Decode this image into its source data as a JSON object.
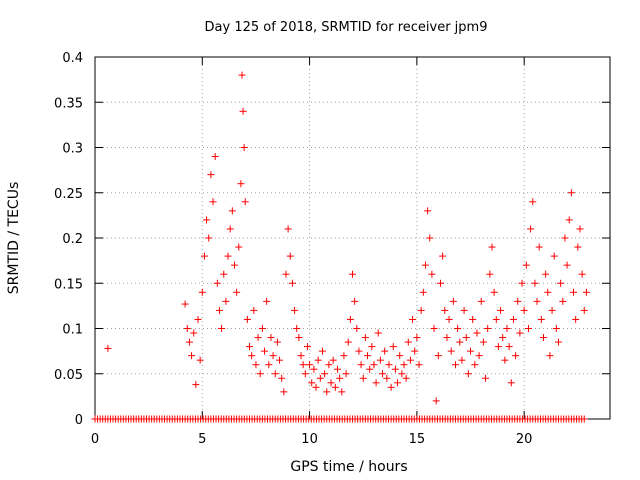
{
  "chart_data": {
    "type": "scatter",
    "title": "Day 125 of 2018, SRMTID for receiver jpm9",
    "xlabel": "GPS time / hours",
    "ylabel": "SRMTID / TECUs",
    "xlim": [
      0,
      24
    ],
    "ylim": [
      0,
      0.4
    ],
    "x_ticks": [
      0,
      5,
      10,
      15,
      20
    ],
    "y_ticks": [
      0,
      0.05,
      0.1,
      0.15,
      0.2,
      0.25,
      0.3,
      0.35,
      0.4
    ],
    "x_tick_labels": [
      "0",
      "5",
      "10",
      "15",
      "20"
    ],
    "y_tick_labels": [
      "0",
      "0.05",
      "0.1",
      "0.15",
      "0.2",
      "0.25",
      "0.3",
      "0.35",
      "0.4"
    ],
    "grid": true,
    "marker": "+",
    "color": "#ff0000",
    "series": [
      {
        "name": "SRMTID",
        "points": [
          [
            0.6,
            0.078
          ],
          [
            4.2,
            0.127
          ],
          [
            4.3,
            0.1
          ],
          [
            4.4,
            0.085
          ],
          [
            4.5,
            0.07
          ],
          [
            4.6,
            0.095
          ],
          [
            4.7,
            0.038
          ],
          [
            4.8,
            0.11
          ],
          [
            4.9,
            0.065
          ],
          [
            5.0,
            0.14
          ],
          [
            5.1,
            0.18
          ],
          [
            5.2,
            0.22
          ],
          [
            5.3,
            0.2
          ],
          [
            5.4,
            0.27
          ],
          [
            5.5,
            0.24
          ],
          [
            5.6,
            0.29
          ],
          [
            5.7,
            0.15
          ],
          [
            5.8,
            0.12
          ],
          [
            5.9,
            0.1
          ],
          [
            6.0,
            0.16
          ],
          [
            6.1,
            0.13
          ],
          [
            6.2,
            0.18
          ],
          [
            6.3,
            0.21
          ],
          [
            6.4,
            0.23
          ],
          [
            6.5,
            0.17
          ],
          [
            6.6,
            0.14
          ],
          [
            6.7,
            0.19
          ],
          [
            6.8,
            0.26
          ],
          [
            6.85,
            0.38
          ],
          [
            6.9,
            0.34
          ],
          [
            6.95,
            0.3
          ],
          [
            7.0,
            0.24
          ],
          [
            7.1,
            0.11
          ],
          [
            7.2,
            0.08
          ],
          [
            7.3,
            0.07
          ],
          [
            7.4,
            0.12
          ],
          [
            7.5,
            0.06
          ],
          [
            7.6,
            0.09
          ],
          [
            7.7,
            0.05
          ],
          [
            7.8,
            0.1
          ],
          [
            7.9,
            0.075
          ],
          [
            8.0,
            0.13
          ],
          [
            8.1,
            0.06
          ],
          [
            8.2,
            0.09
          ],
          [
            8.3,
            0.07
          ],
          [
            8.4,
            0.05
          ],
          [
            8.5,
            0.085
          ],
          [
            8.6,
            0.065
          ],
          [
            8.7,
            0.045
          ],
          [
            8.8,
            0.03
          ],
          [
            8.9,
            0.16
          ],
          [
            9.0,
            0.21
          ],
          [
            9.1,
            0.18
          ],
          [
            9.2,
            0.15
          ],
          [
            9.3,
            0.12
          ],
          [
            9.4,
            0.1
          ],
          [
            9.5,
            0.09
          ],
          [
            9.6,
            0.07
          ],
          [
            9.7,
            0.06
          ],
          [
            9.8,
            0.05
          ],
          [
            9.9,
            0.08
          ],
          [
            10.0,
            0.06
          ],
          [
            10.1,
            0.04
          ],
          [
            10.2,
            0.055
          ],
          [
            10.3,
            0.035
          ],
          [
            10.4,
            0.065
          ],
          [
            10.5,
            0.045
          ],
          [
            10.6,
            0.075
          ],
          [
            10.7,
            0.05
          ],
          [
            10.8,
            0.03
          ],
          [
            10.9,
            0.06
          ],
          [
            11.0,
            0.04
          ],
          [
            11.1,
            0.065
          ],
          [
            11.2,
            0.035
          ],
          [
            11.3,
            0.055
          ],
          [
            11.4,
            0.045
          ],
          [
            11.5,
            0.03
          ],
          [
            11.6,
            0.07
          ],
          [
            11.7,
            0.05
          ],
          [
            11.8,
            0.085
          ],
          [
            11.9,
            0.11
          ],
          [
            12.0,
            0.16
          ],
          [
            12.1,
            0.13
          ],
          [
            12.2,
            0.1
          ],
          [
            12.3,
            0.075
          ],
          [
            12.4,
            0.06
          ],
          [
            12.5,
            0.045
          ],
          [
            12.6,
            0.09
          ],
          [
            12.7,
            0.07
          ],
          [
            12.8,
            0.055
          ],
          [
            12.9,
            0.08
          ],
          [
            13.0,
            0.06
          ],
          [
            13.1,
            0.04
          ],
          [
            13.2,
            0.095
          ],
          [
            13.3,
            0.065
          ],
          [
            13.4,
            0.05
          ],
          [
            13.5,
            0.075
          ],
          [
            13.6,
            0.045
          ],
          [
            13.7,
            0.06
          ],
          [
            13.8,
            0.035
          ],
          [
            13.9,
            0.08
          ],
          [
            14.0,
            0.055
          ],
          [
            14.1,
            0.04
          ],
          [
            14.2,
            0.07
          ],
          [
            14.3,
            0.05
          ],
          [
            14.4,
            0.06
          ],
          [
            14.5,
            0.045
          ],
          [
            14.6,
            0.085
          ],
          [
            14.7,
            0.065
          ],
          [
            14.8,
            0.11
          ],
          [
            14.9,
            0.075
          ],
          [
            15.0,
            0.09
          ],
          [
            15.1,
            0.06
          ],
          [
            15.2,
            0.12
          ],
          [
            15.3,
            0.14
          ],
          [
            15.4,
            0.17
          ],
          [
            15.5,
            0.23
          ],
          [
            15.6,
            0.2
          ],
          [
            15.7,
            0.16
          ],
          [
            15.8,
            0.1
          ],
          [
            15.9,
            0.02
          ],
          [
            16.0,
            0.07
          ],
          [
            16.1,
            0.15
          ],
          [
            16.2,
            0.18
          ],
          [
            16.3,
            0.12
          ],
          [
            16.4,
            0.09
          ],
          [
            16.5,
            0.11
          ],
          [
            16.6,
            0.075
          ],
          [
            16.7,
            0.13
          ],
          [
            16.8,
            0.06
          ],
          [
            16.9,
            0.1
          ],
          [
            17.0,
            0.085
          ],
          [
            17.1,
            0.065
          ],
          [
            17.2,
            0.12
          ],
          [
            17.3,
            0.09
          ],
          [
            17.4,
            0.05
          ],
          [
            17.5,
            0.075
          ],
          [
            17.6,
            0.11
          ],
          [
            17.7,
            0.06
          ],
          [
            17.8,
            0.095
          ],
          [
            17.9,
            0.07
          ],
          [
            18.0,
            0.13
          ],
          [
            18.1,
            0.085
          ],
          [
            18.2,
            0.045
          ],
          [
            18.3,
            0.1
          ],
          [
            18.4,
            0.16
          ],
          [
            18.5,
            0.19
          ],
          [
            18.6,
            0.14
          ],
          [
            18.7,
            0.11
          ],
          [
            18.8,
            0.08
          ],
          [
            18.9,
            0.12
          ],
          [
            19.0,
            0.09
          ],
          [
            19.1,
            0.065
          ],
          [
            19.2,
            0.1
          ],
          [
            19.3,
            0.08
          ],
          [
            19.4,
            0.04
          ],
          [
            19.5,
            0.11
          ],
          [
            19.6,
            0.07
          ],
          [
            19.7,
            0.13
          ],
          [
            19.8,
            0.095
          ],
          [
            19.9,
            0.15
          ],
          [
            20.0,
            0.12
          ],
          [
            20.1,
            0.17
          ],
          [
            20.2,
            0.1
          ],
          [
            20.3,
            0.21
          ],
          [
            20.4,
            0.24
          ],
          [
            20.5,
            0.15
          ],
          [
            20.6,
            0.13
          ],
          [
            20.7,
            0.19
          ],
          [
            20.8,
            0.11
          ],
          [
            20.9,
            0.09
          ],
          [
            21.0,
            0.16
          ],
          [
            21.1,
            0.14
          ],
          [
            21.2,
            0.07
          ],
          [
            21.3,
            0.12
          ],
          [
            21.4,
            0.18
          ],
          [
            21.5,
            0.1
          ],
          [
            21.6,
            0.085
          ],
          [
            21.7,
            0.15
          ],
          [
            21.8,
            0.13
          ],
          [
            21.9,
            0.2
          ],
          [
            22.0,
            0.17
          ],
          [
            22.1,
            0.22
          ],
          [
            22.2,
            0.25
          ],
          [
            22.3,
            0.14
          ],
          [
            22.4,
            0.11
          ],
          [
            22.5,
            0.19
          ],
          [
            22.6,
            0.21
          ],
          [
            22.7,
            0.16
          ],
          [
            22.8,
            0.12
          ],
          [
            22.9,
            0.14
          ]
        ]
      },
      {
        "name": "zero baseline",
        "x_start": 0,
        "x_end": 22.9,
        "x_step": 0.12,
        "y": 0
      }
    ]
  }
}
